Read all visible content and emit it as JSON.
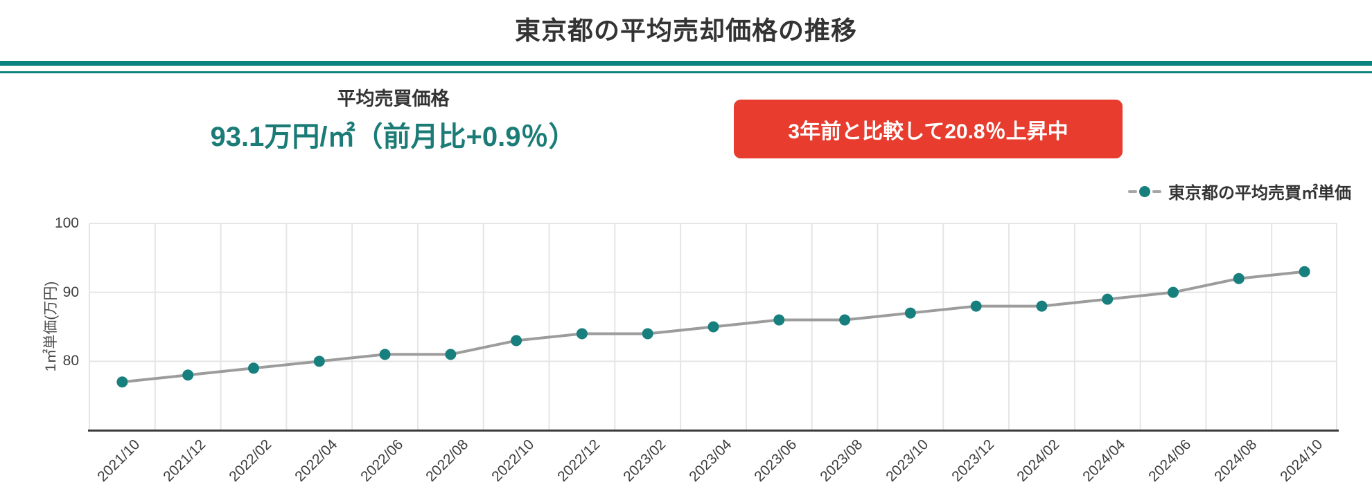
{
  "header": {
    "title": "東京都の平均売却価格の推移"
  },
  "stats": {
    "label": "平均売買価格",
    "value": "93.1万円/㎡（前月比+0.9％）",
    "badge": "3年前と比較して20.8％上昇中"
  },
  "legend": {
    "label": "東京都の平均売買㎡単価"
  },
  "colors": {
    "accent_teal": "#0c827e",
    "value_teal": "#1b7c77",
    "point_teal": "#177f7d",
    "badge_red": "#e73c2e",
    "line_gray": "#9c9c9c",
    "grid_gray": "#e5e5e5",
    "axis_dark": "#3a3a3a"
  },
  "chart_data": {
    "type": "line",
    "title": "東京都の平均売却価格の推移",
    "categories": [
      "2021/10",
      "2021/12",
      "2022/02",
      "2022/04",
      "2022/06",
      "2022/08",
      "2022/10",
      "2022/12",
      "2023/02",
      "2023/04",
      "2023/06",
      "2023/08",
      "2023/10",
      "2023/12",
      "2024/02",
      "2024/04",
      "2024/06",
      "2024/08",
      "2024/10"
    ],
    "series": [
      {
        "name": "東京都の平均売買㎡単価",
        "values": [
          77,
          78,
          79,
          80,
          81,
          81,
          83,
          84,
          84,
          85,
          86,
          86,
          87,
          88,
          88,
          89,
          90,
          92,
          93
        ]
      }
    ],
    "xlabel": "",
    "ylabel": "1㎡単価(万円)",
    "ylim": [
      70,
      100
    ],
    "yticks": [
      80,
      90,
      100
    ],
    "grid": true,
    "legend_position": "top-right",
    "line_color": "#9c9c9c",
    "point_color": "#177f7d"
  }
}
